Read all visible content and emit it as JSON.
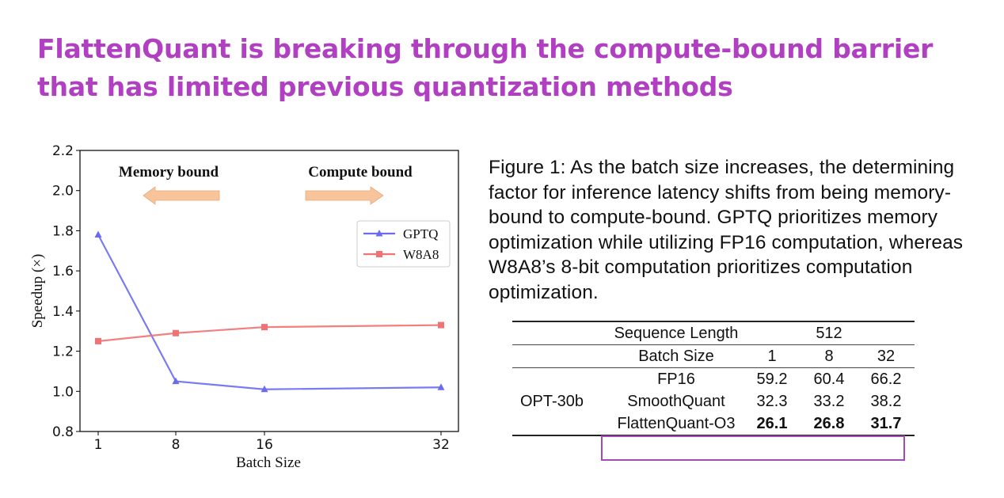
{
  "headline": "FlattenQuant is breaking through the compute-bound barrier that has limited previous quantization methods",
  "caption": "Figure 1:  As the batch size increases, the determining factor for inference latency shifts from being memory-bound to compute-bound. GPTQ prioritizes memory optimization while utilizing FP16 computation, whereas W8A8’s 8-bit computation prioritizes computation optimization.",
  "chart_data": {
    "type": "line",
    "x": [
      1,
      8,
      16,
      32
    ],
    "x_tick_labels": [
      "1",
      "8",
      "16",
      "32"
    ],
    "xlabel": "Batch Size",
    "ylabel": "Speedup (×)",
    "ylim": [
      0.8,
      2.2
    ],
    "y_ticks": [
      "0.8",
      "1.0",
      "1.2",
      "1.4",
      "1.6",
      "1.8",
      "2.0",
      "2.2"
    ],
    "grid": false,
    "legend_position": "upper-right",
    "series": [
      {
        "name": "GPTQ",
        "values": [
          1.78,
          1.05,
          1.01,
          1.02
        ],
        "color": "#6b6bf0",
        "marker": "triangle"
      },
      {
        "name": "W8A8",
        "values": [
          1.25,
          1.29,
          1.32,
          1.33
        ],
        "color": "#f07272",
        "marker": "square"
      }
    ],
    "annotations": [
      {
        "text": "Memory bound",
        "arrow": "left",
        "color": "#f8c49c"
      },
      {
        "text": "Compute bound",
        "arrow": "right",
        "color": "#f8c49c"
      }
    ]
  },
  "table": {
    "seq_label": "Sequence Length",
    "seq_value": "512",
    "batch_label": "Batch Size",
    "batch_values": [
      "1",
      "8",
      "32"
    ],
    "group_label": "OPT-30b",
    "rows": [
      {
        "method": "FP16",
        "values": [
          "59.2",
          "60.4",
          "66.2"
        ],
        "bold": false
      },
      {
        "method": "SmoothQuant",
        "values": [
          "32.3",
          "33.2",
          "38.2"
        ],
        "bold": false
      },
      {
        "method": "FlattenQuant-O3",
        "values": [
          "26.1",
          "26.8",
          "31.7"
        ],
        "bold": true
      }
    ],
    "highlight_color": "#a24bb4"
  }
}
